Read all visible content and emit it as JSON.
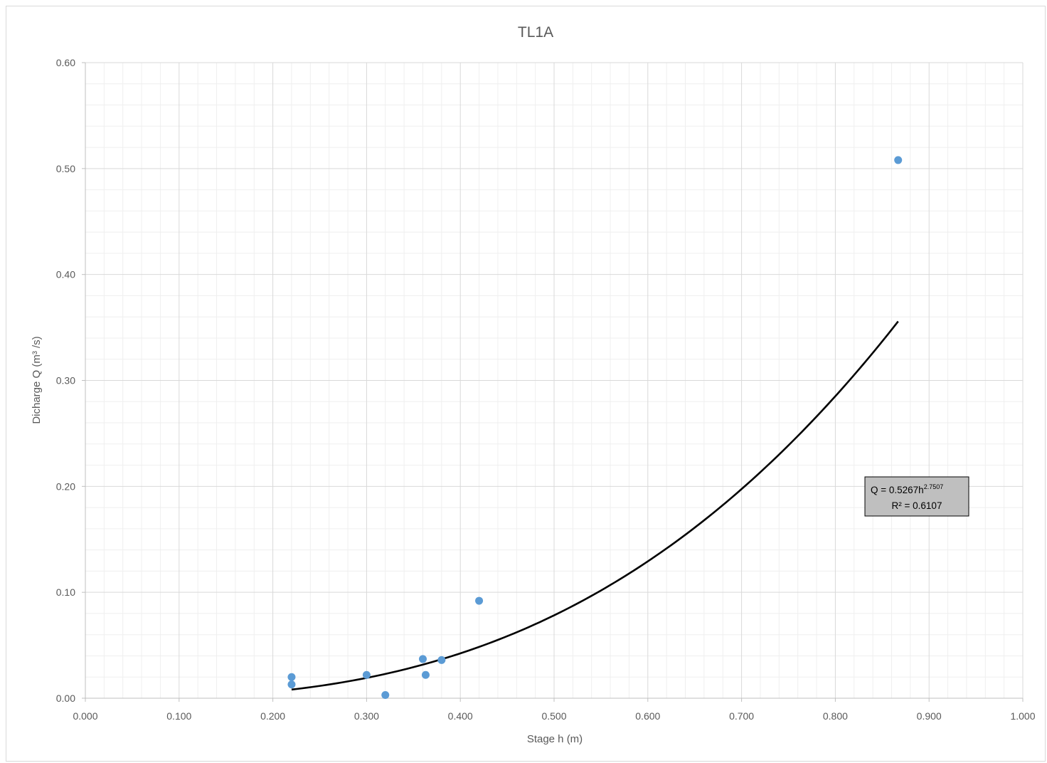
{
  "chart_data": {
    "type": "scatter",
    "title": "TL1A",
    "xlabel": "Stage h (m)",
    "ylabel": "Dicharge Q (m³ /s)",
    "xlim": [
      0,
      1.0
    ],
    "ylim": [
      0,
      0.6
    ],
    "x_ticks": [
      "0.000",
      "0.100",
      "0.200",
      "0.300",
      "0.400",
      "0.500",
      "0.600",
      "0.700",
      "0.800",
      "0.900",
      "1.000"
    ],
    "y_ticks": [
      "0.00",
      "0.10",
      "0.20",
      "0.30",
      "0.40",
      "0.50",
      "0.60"
    ],
    "grid": {
      "major": true,
      "minor": true
    },
    "series": [
      {
        "color": "#5b9bd5",
        "points": [
          {
            "x": 0.22,
            "y": 0.02
          },
          {
            "x": 0.22,
            "y": 0.013
          },
          {
            "x": 0.3,
            "y": 0.022
          },
          {
            "x": 0.32,
            "y": 0.003
          },
          {
            "x": 0.36,
            "y": 0.037
          },
          {
            "x": 0.363,
            "y": 0.022
          },
          {
            "x": 0.38,
            "y": 0.036
          },
          {
            "x": 0.42,
            "y": 0.092
          },
          {
            "x": 0.867,
            "y": 0.508
          }
        ]
      }
    ],
    "trendline": {
      "type": "power",
      "coefficient": 0.5267,
      "exponent": 2.7507,
      "x_range": [
        0.22,
        0.867
      ],
      "color": "#000000",
      "equation_main": "Q = 0.5267h",
      "equation_exponent": "2.7507",
      "r_squared_label": "R² = 0.6107"
    }
  }
}
